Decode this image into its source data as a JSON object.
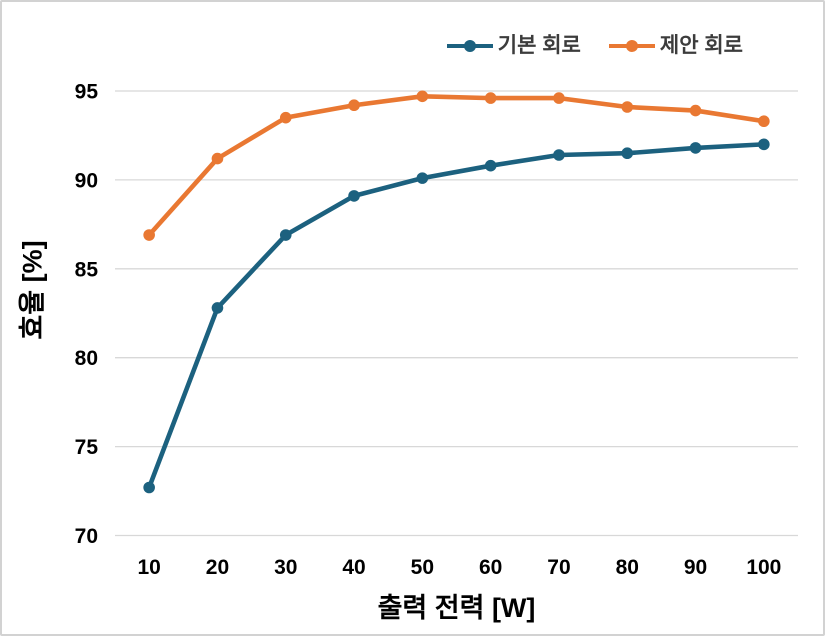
{
  "chart_data": {
    "type": "line",
    "title": "",
    "xlabel": "출력 전력 [W]",
    "ylabel": "효율 [%]",
    "categories": [
      10,
      20,
      30,
      40,
      50,
      60,
      70,
      80,
      90,
      100
    ],
    "series": [
      {
        "name": "기본 회로",
        "color": "#1C617F",
        "marker": "circle",
        "values": [
          72.7,
          82.8,
          86.9,
          89.1,
          90.1,
          90.8,
          91.4,
          91.5,
          91.8,
          92.0
        ]
      },
      {
        "name": "제안 회로",
        "color": "#E97832",
        "marker": "circle",
        "values": [
          86.9,
          91.2,
          93.5,
          94.2,
          94.7,
          94.6,
          94.6,
          94.1,
          93.9,
          93.3
        ]
      }
    ],
    "ylim": [
      70,
      95
    ],
    "yticks": [
      70,
      75,
      80,
      85,
      90,
      95
    ],
    "grid": "horizontal",
    "grid_color": "#d8d8d8",
    "tick_color": "#000000",
    "legend_position": "top-right",
    "legend_text_color": "#3c3c3c"
  }
}
